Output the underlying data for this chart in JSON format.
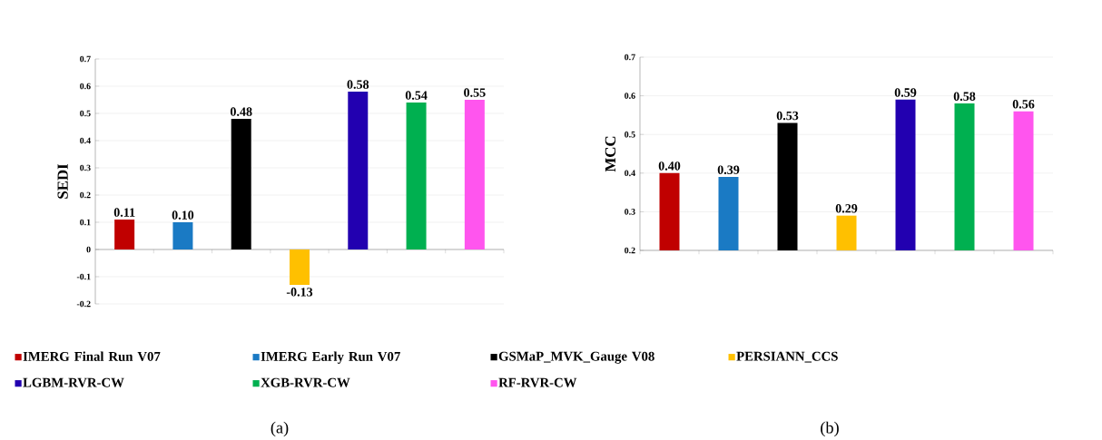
{
  "chart_data": [
    {
      "type": "bar",
      "ylabel": "SEDI",
      "categories": [
        null,
        null,
        null,
        null,
        null,
        null,
        null
      ],
      "series": [
        {
          "name": "IMERG Final Run V07",
          "color": "#c00000",
          "values": [
            0.11,
            null,
            null,
            null,
            null,
            null,
            null
          ],
          "value_labels": [
            "0.11",
            null,
            null,
            null,
            null,
            null,
            null
          ]
        },
        {
          "name": "IMERG Early Run V07",
          "color": "#1a7ac4",
          "values": [
            null,
            0.1,
            null,
            null,
            null,
            null,
            null
          ],
          "value_labels": [
            null,
            "0.10",
            null,
            null,
            null,
            null,
            null
          ]
        },
        {
          "name": "GSMaP_MVK_Gauge V08",
          "color": "#000000",
          "values": [
            null,
            null,
            0.48,
            null,
            null,
            null,
            null
          ],
          "value_labels": [
            null,
            null,
            "0.48",
            null,
            null,
            null,
            null
          ]
        },
        {
          "name": "PERSIANN_CCS",
          "color": "#ffc000",
          "values": [
            null,
            null,
            null,
            -0.13,
            null,
            null,
            null
          ],
          "value_labels": [
            null,
            null,
            null,
            "-0.13",
            null,
            null,
            null
          ]
        },
        {
          "name": "LGBM-RVR-CW",
          "color": "#2200b0",
          "values": [
            null,
            null,
            null,
            null,
            0.58,
            null,
            null
          ],
          "value_labels": [
            null,
            null,
            null,
            null,
            "0.58",
            null,
            null
          ]
        },
        {
          "name": "XGB-RVR-CW",
          "color": "#00b050",
          "values": [
            null,
            null,
            null,
            null,
            null,
            0.54,
            null
          ],
          "value_labels": [
            null,
            null,
            null,
            null,
            null,
            "0.54",
            null
          ]
        },
        {
          "name": "RF-RVR-CW",
          "color": "#ff55ee",
          "values": [
            null,
            null,
            null,
            null,
            null,
            null,
            0.55
          ],
          "value_labels": [
            null,
            null,
            null,
            null,
            null,
            null,
            "0.55"
          ]
        }
      ],
      "ylim": [
        -0.2,
        0.7
      ],
      "yticks": [
        -0.2,
        -0.1,
        0,
        0.1,
        0.2,
        0.3,
        0.4,
        0.5,
        0.6,
        0.7
      ],
      "grid": "y",
      "legend": "bottom",
      "annotations": [
        "(a)"
      ]
    },
    {
      "type": "bar",
      "ylabel": "MCC",
      "categories": [
        null,
        null,
        null,
        null,
        null,
        null,
        null
      ],
      "series": [
        {
          "color": "#c00000",
          "values": [
            0.4,
            null,
            null,
            null,
            null,
            null,
            null
          ],
          "value_labels": [
            "0.40",
            null,
            null,
            null,
            null,
            null,
            null
          ]
        },
        {
          "color": "#1a7ac4",
          "values": [
            null,
            0.39,
            null,
            null,
            null,
            null,
            null
          ],
          "value_labels": [
            null,
            "0.39",
            null,
            null,
            null,
            null,
            null
          ]
        },
        {
          "color": "#000000",
          "values": [
            null,
            null,
            0.53,
            null,
            null,
            null,
            null
          ],
          "value_labels": [
            null,
            null,
            "0.53",
            null,
            null,
            null,
            null
          ]
        },
        {
          "color": "#ffc000",
          "values": [
            null,
            null,
            null,
            0.29,
            null,
            null,
            null
          ],
          "value_labels": [
            null,
            null,
            null,
            "0.29",
            null,
            null,
            null
          ]
        },
        {
          "color": "#2200b0",
          "values": [
            null,
            null,
            null,
            null,
            0.59,
            null,
            null
          ],
          "value_labels": [
            null,
            null,
            null,
            null,
            "0.59",
            null,
            null
          ]
        },
        {
          "color": "#00b050",
          "values": [
            null,
            null,
            null,
            null,
            null,
            0.58,
            null
          ],
          "value_labels": [
            null,
            null,
            null,
            null,
            null,
            "0.58",
            null
          ]
        },
        {
          "color": "#ff55ee",
          "values": [
            null,
            null,
            null,
            null,
            null,
            null,
            0.56
          ],
          "value_labels": [
            null,
            null,
            null,
            null,
            null,
            null,
            "0.56"
          ]
        }
      ],
      "ylim": [
        0.2,
        0.7
      ],
      "yticks": [
        0.2,
        0.3,
        0.4,
        0.5,
        0.6,
        0.7
      ],
      "grid": "y",
      "annotations": [
        "(b)"
      ]
    }
  ]
}
